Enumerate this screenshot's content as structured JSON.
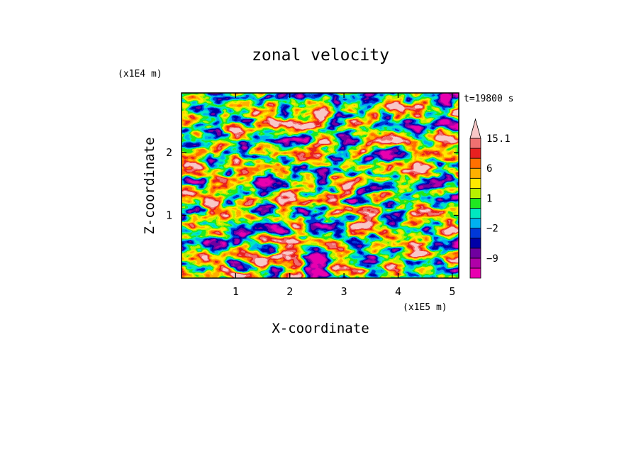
{
  "chart_data": {
    "type": "heatmap",
    "title": "zonal velocity",
    "xlabel": "X-coordinate",
    "ylabel": "Z-coordinate",
    "x_unit": "(x1E5 m)",
    "y_unit": "(x1E4 m)",
    "time_label": "t=19800 s",
    "xlim": [
      0.0,
      5.12
    ],
    "ylim": [
      0.0,
      2.95
    ],
    "x_ticks": [
      1,
      2,
      3,
      4,
      5
    ],
    "x_tick_labels": [
      "1",
      "2",
      "3",
      "4",
      "5"
    ],
    "y_ticks": [
      1,
      2
    ],
    "y_tick_labels": [
      "1",
      "2"
    ],
    "colorbar": {
      "levels": [
        -15,
        -12,
        -9,
        -6,
        -3,
        -2,
        -1,
        0,
        1,
        2,
        3,
        6,
        9,
        12,
        15.1
      ],
      "tick_values": [
        15.1,
        6,
        1,
        -2,
        -9
      ],
      "tick_labels": [
        "15.1",
        "6",
        "1",
        "−2",
        "−9"
      ],
      "colors": [
        "#e800b0",
        "#b000a8",
        "#7000a0",
        "#0000a8",
        "#0038d8",
        "#00b0f0",
        "#00e8c0",
        "#20e820",
        "#b8f000",
        "#ffe800",
        "#ffb000",
        "#ff7000",
        "#e82020",
        "#f07070",
        "#f8c8c8"
      ],
      "extend": "max"
    }
  }
}
